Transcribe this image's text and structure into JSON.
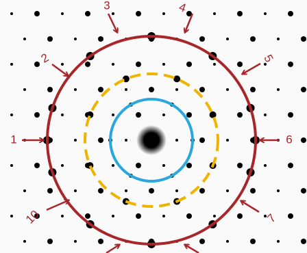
{
  "labels": [
    "1",
    "2",
    "3",
    "4",
    "5",
    "6",
    "7",
    "10"
  ]
}
